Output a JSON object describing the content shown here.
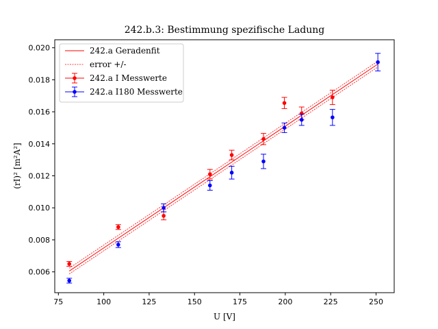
{
  "chart_data": {
    "type": "scatter",
    "title": "242.b.3: Bestimmung spezifische Ladung",
    "xlabel": "U [V]",
    "ylabel": "(rI)² [m²A²]",
    "xlim": [
      73,
      260
    ],
    "ylim": [
      0.0047,
      0.0205
    ],
    "xticks": [
      75,
      100,
      125,
      150,
      175,
      200,
      225,
      250
    ],
    "xtick_labels": [
      "75",
      "100",
      "125",
      "150",
      "175",
      "200",
      "225",
      "250"
    ],
    "yticks": [
      0.006,
      0.008,
      0.01,
      0.012,
      0.014,
      0.016,
      0.018,
      0.02
    ],
    "ytick_labels": [
      "0.006",
      "0.008",
      "0.010",
      "0.012",
      "0.014",
      "0.016",
      "0.018",
      "0.020"
    ],
    "grid": false,
    "legend_position": "top-left",
    "fit": {
      "name": "242.a Geradenfit",
      "x_range": [
        81,
        251
      ],
      "y_at_start": 0.00605,
      "y_at_end": 0.01898,
      "color": "#ff0000"
    },
    "error_band": {
      "name": "error +/-",
      "y_at_start_upper": 0.00623,
      "y_at_end_upper": 0.01916,
      "y_at_start_lower": 0.00587,
      "y_at_end_lower": 0.0188,
      "color": "#ff0000"
    },
    "series": [
      {
        "name": "242.a I Messwerte",
        "color": "#ff0000",
        "points": [
          {
            "x": 81,
            "y": 0.0065,
            "yerr": 0.00015
          },
          {
            "x": 108,
            "y": 0.0088,
            "yerr": 0.00015
          },
          {
            "x": 133,
            "y": 0.0095,
            "yerr": 0.00025
          },
          {
            "x": 158.5,
            "y": 0.0121,
            "yerr": 0.0003
          },
          {
            "x": 170.5,
            "y": 0.0133,
            "yerr": 0.0003
          },
          {
            "x": 188,
            "y": 0.0143,
            "yerr": 0.00035
          },
          {
            "x": 199.5,
            "y": 0.01655,
            "yerr": 0.00035
          },
          {
            "x": 209,
            "y": 0.0159,
            "yerr": 0.0004
          },
          {
            "x": 226,
            "y": 0.0169,
            "yerr": 0.00045
          }
        ]
      },
      {
        "name": "242.a I180 Messwerte",
        "color": "#0000ff",
        "points": [
          {
            "x": 81,
            "y": 0.00545,
            "yerr": 0.00015
          },
          {
            "x": 108,
            "y": 0.0077,
            "yerr": 0.00018
          },
          {
            "x": 133,
            "y": 0.01,
            "yerr": 0.00025
          },
          {
            "x": 158.5,
            "y": 0.0114,
            "yerr": 0.0003
          },
          {
            "x": 170.5,
            "y": 0.0122,
            "yerr": 0.0004
          },
          {
            "x": 188,
            "y": 0.0129,
            "yerr": 0.00045
          },
          {
            "x": 199.5,
            "y": 0.015,
            "yerr": 0.0003
          },
          {
            "x": 209,
            "y": 0.0155,
            "yerr": 0.00035
          },
          {
            "x": 226,
            "y": 0.01565,
            "yerr": 0.0005
          },
          {
            "x": 251,
            "y": 0.0191,
            "yerr": 0.00055
          }
        ]
      }
    ]
  }
}
